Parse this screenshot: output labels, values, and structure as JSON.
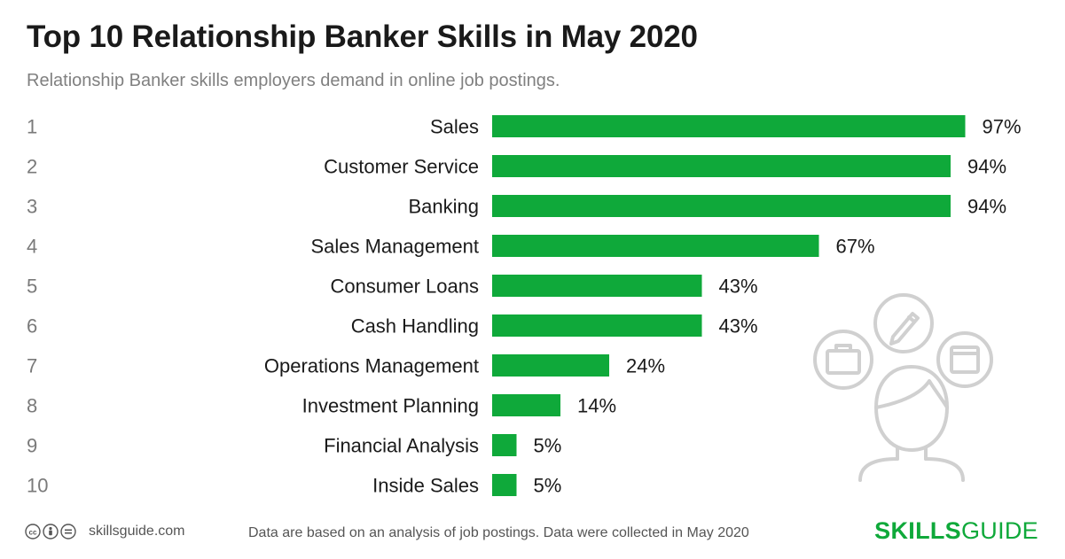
{
  "header": {
    "title": "Top 10 Relationship Banker Skills in May 2020",
    "subtitle": "Relationship Banker skills employers demand in online job postings."
  },
  "chart_data": {
    "type": "bar",
    "orientation": "horizontal",
    "ranks": [
      "1",
      "2",
      "3",
      "4",
      "5",
      "6",
      "7",
      "8",
      "9",
      "10"
    ],
    "categories": [
      "Sales",
      "Customer Service",
      "Banking",
      "Sales Management",
      "Consumer Loans",
      "Cash Handling",
      "Operations Management",
      "Investment Planning",
      "Financial Analysis",
      "Inside Sales"
    ],
    "values": [
      97,
      94,
      94,
      67,
      43,
      43,
      24,
      14,
      5,
      5
    ],
    "value_suffix": "%",
    "xlim": [
      0,
      100
    ],
    "bar_color": "#0fa93a",
    "grid": false,
    "legend": "none"
  },
  "footer": {
    "site": "skillsguide.com",
    "note": "Data are based on an analysis of job postings. Data were collected in May 2020",
    "brand_bold": "SKILLS",
    "brand_regular": "GUIDE",
    "license_icons": [
      "cc-icon",
      "by-icon",
      "nd-icon"
    ]
  },
  "illustration": {
    "icons": [
      "briefcase-icon",
      "pencil-icon",
      "browser-window-icon",
      "person-icon"
    ],
    "color": "#d0d0d0"
  }
}
